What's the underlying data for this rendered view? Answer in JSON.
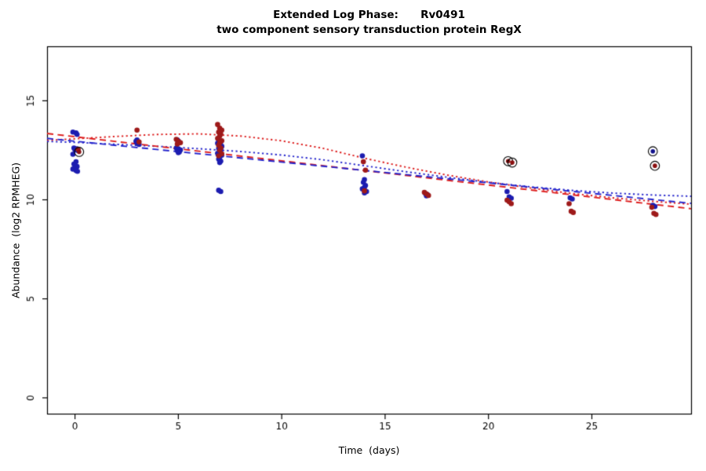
{
  "title": {
    "line1": "Extended Log Phase:      Rv0491",
    "line2": "two component sensory transduction protein RegX"
  },
  "chart_data": {
    "type": "scatter",
    "title": "Extended Log Phase:      Rv0491",
    "subtitle": "two component sensory transduction protein RegX",
    "xlabel": "Time  (days)",
    "ylabel": "Abundance  (log2 RPMHEG)",
    "xlim": [
      -1.35,
      29.8
    ],
    "ylim": [
      -0.8,
      17.75
    ],
    "xticks": [
      0,
      5,
      10,
      15,
      20,
      25
    ],
    "yticks": [
      0,
      5,
      10,
      15
    ],
    "grid": false,
    "legend": "none",
    "colors": {
      "blue_points": "#1c1cb0",
      "red_points": "#9e1a1a",
      "blue_line": "#2424cc",
      "red_line": "#dd1c1c",
      "ring": "#000000",
      "axis": "#000000"
    },
    "series": [
      {
        "name": "blue-replicates",
        "color": "#1c1cb0",
        "points": [
          [
            -0.1,
            13.42
          ],
          [
            0.05,
            13.38
          ],
          [
            0.1,
            13.3
          ],
          [
            -0.05,
            12.62
          ],
          [
            0.1,
            12.58
          ],
          [
            0.0,
            12.52
          ],
          [
            0.15,
            12.48
          ],
          [
            -0.1,
            12.3
          ],
          [
            0.05,
            11.92
          ],
          [
            -0.05,
            11.8
          ],
          [
            0.1,
            11.68
          ],
          [
            0.0,
            11.62
          ],
          [
            -0.1,
            11.55
          ],
          [
            0.05,
            11.48
          ],
          [
            0.12,
            11.44
          ],
          [
            3.0,
            13.02
          ],
          [
            2.95,
            12.95
          ],
          [
            3.05,
            12.9
          ],
          [
            3.0,
            12.85
          ],
          [
            3.1,
            12.8
          ],
          [
            4.95,
            13.02
          ],
          [
            5.0,
            12.96
          ],
          [
            4.9,
            12.62
          ],
          [
            5.0,
            12.58
          ],
          [
            5.1,
            12.52
          ],
          [
            4.95,
            12.48
          ],
          [
            5.05,
            12.42
          ],
          [
            5.0,
            12.38
          ],
          [
            6.95,
            13.0
          ],
          [
            7.05,
            12.92
          ],
          [
            6.9,
            12.85
          ],
          [
            7.0,
            12.78
          ],
          [
            7.1,
            12.7
          ],
          [
            6.95,
            12.6
          ],
          [
            7.05,
            12.52
          ],
          [
            7.0,
            12.45
          ],
          [
            6.9,
            12.35
          ],
          [
            7.1,
            12.25
          ],
          [
            7.0,
            12.15
          ],
          [
            6.95,
            12.05
          ],
          [
            7.05,
            11.95
          ],
          [
            7.0,
            11.88
          ],
          [
            6.95,
            10.48
          ],
          [
            7.05,
            10.42
          ],
          [
            13.9,
            12.22
          ],
          [
            14.0,
            11.02
          ],
          [
            13.95,
            10.88
          ],
          [
            14.05,
            10.72
          ],
          [
            14.0,
            10.62
          ],
          [
            13.9,
            10.55
          ],
          [
            14.1,
            10.42
          ],
          [
            14.0,
            10.35
          ],
          [
            16.95,
            10.32
          ],
          [
            17.05,
            10.26
          ],
          [
            17.0,
            10.2
          ],
          [
            20.9,
            10.42
          ],
          [
            21.0,
            10.15
          ],
          [
            21.1,
            10.08
          ],
          [
            23.95,
            10.1
          ],
          [
            24.05,
            10.04
          ],
          [
            27.95,
            9.72
          ],
          [
            28.05,
            9.66
          ]
        ]
      },
      {
        "name": "red-replicates",
        "color": "#9e1a1a",
        "points": [
          [
            0.15,
            12.55
          ],
          [
            3.0,
            13.52
          ],
          [
            3.1,
            12.92
          ],
          [
            4.9,
            13.05
          ],
          [
            5.0,
            12.95
          ],
          [
            5.1,
            12.88
          ],
          [
            4.95,
            12.82
          ],
          [
            6.9,
            13.8
          ],
          [
            7.0,
            13.62
          ],
          [
            7.1,
            13.52
          ],
          [
            6.95,
            13.42
          ],
          [
            7.05,
            13.32
          ],
          [
            7.0,
            13.22
          ],
          [
            6.9,
            13.1
          ],
          [
            7.1,
            12.98
          ],
          [
            7.0,
            12.88
          ],
          [
            6.95,
            12.75
          ],
          [
            7.05,
            12.62
          ],
          [
            7.0,
            12.5
          ],
          [
            7.1,
            12.32
          ],
          [
            6.95,
            12.22
          ],
          [
            13.95,
            11.92
          ],
          [
            14.05,
            11.5
          ],
          [
            14.0,
            10.45
          ],
          [
            16.9,
            10.38
          ],
          [
            17.0,
            10.3
          ],
          [
            17.1,
            10.22
          ],
          [
            20.9,
            9.98
          ],
          [
            21.0,
            9.9
          ],
          [
            21.1,
            9.8
          ],
          [
            23.9,
            9.8
          ],
          [
            24.0,
            9.42
          ],
          [
            24.1,
            9.36
          ],
          [
            27.9,
            9.62
          ],
          [
            28.0,
            9.32
          ],
          [
            28.1,
            9.26
          ]
        ]
      }
    ],
    "circled_points": [
      {
        "x": 0.2,
        "y": 12.42,
        "color": "#8b1010"
      },
      {
        "x": 20.95,
        "y": 11.95,
        "color": "#8b1010"
      },
      {
        "x": 21.15,
        "y": 11.88,
        "color": "#8b1010"
      },
      {
        "x": 27.95,
        "y": 12.45,
        "color": "#10108b"
      },
      {
        "x": 28.05,
        "y": 11.72,
        "color": "#8b1010"
      }
    ],
    "lines": [
      {
        "name": "red-loess-dotted",
        "color": "#dd1c1c",
        "style": "dotted",
        "x": [
          -1.35,
          0,
          2,
          4,
          6,
          8,
          10,
          12,
          14,
          16,
          18,
          20,
          22,
          24,
          26,
          28,
          29.8
        ],
        "y": [
          13.0,
          13.08,
          13.2,
          13.3,
          13.33,
          13.22,
          12.98,
          12.6,
          12.1,
          11.65,
          11.25,
          10.9,
          10.6,
          10.32,
          10.1,
          9.92,
          9.78
        ]
      },
      {
        "name": "blue-loess-dotted",
        "color": "#2424cc",
        "style": "dotted",
        "x": [
          -1.35,
          0,
          2,
          4,
          6,
          8,
          10,
          12,
          14,
          16,
          18,
          20,
          22,
          24,
          26,
          28,
          29.8
        ],
        "y": [
          12.95,
          12.9,
          12.8,
          12.7,
          12.58,
          12.44,
          12.26,
          12.02,
          11.72,
          11.42,
          11.14,
          10.88,
          10.66,
          10.48,
          10.34,
          10.24,
          10.18
        ]
      },
      {
        "name": "red-linear-dashed",
        "color": "#dd1c1c",
        "style": "dashed",
        "x": [
          -1.35,
          29.8
        ],
        "y": [
          13.35,
          9.55
        ]
      },
      {
        "name": "blue-linear-dashed",
        "color": "#2424cc",
        "style": "dashed",
        "x": [
          -1.35,
          29.8
        ],
        "y": [
          13.1,
          9.82
        ]
      }
    ]
  }
}
